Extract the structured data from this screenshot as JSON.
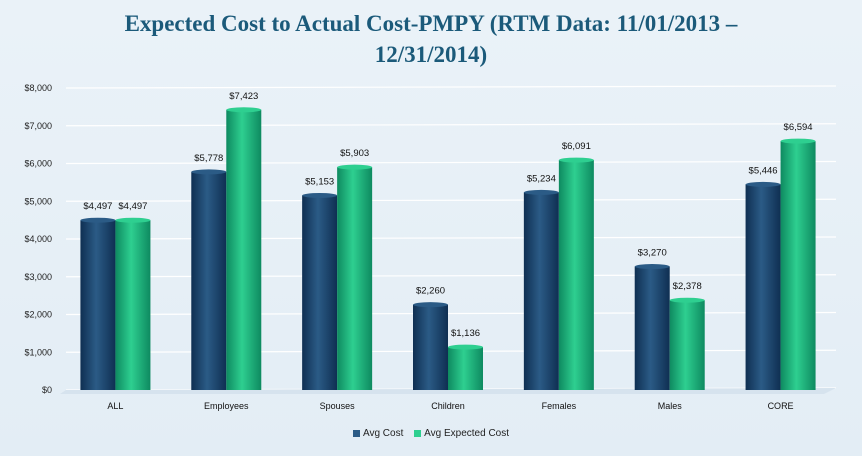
{
  "chart_data": {
    "type": "bar",
    "title_line1": "Expected Cost to Actual Cost-PMPY (RTM Data: 11/01/2013 –",
    "title_line2": "12/31/2014)",
    "categories": [
      "ALL",
      "Employees",
      "Spouses",
      "Children",
      "Females",
      "Males",
      "CORE"
    ],
    "series": [
      {
        "name": "Avg Cost",
        "values": [
          4497,
          5778,
          5153,
          2260,
          5234,
          3270,
          5446
        ],
        "labels": [
          "$4,497",
          "$5,778",
          "$5,153",
          "$2,260",
          "$5,234",
          "$3,270",
          "$5,446"
        ],
        "color": "#2b5b86",
        "color_dark": "#0f2f52"
      },
      {
        "name": "Avg Expected Cost",
        "values": [
          4497,
          7423,
          5903,
          1136,
          6091,
          2378,
          6594
        ],
        "labels": [
          "$4,497",
          "$7,423",
          "$5,903",
          "$1,136",
          "$6,091",
          "$2,378",
          "$6,594"
        ],
        "color": "#2ecf90",
        "color_dark": "#0e8a60"
      }
    ],
    "y_ticks": [
      "$0",
      "$1,000",
      "$2,000",
      "$3,000",
      "$4,000",
      "$5,000",
      "$6,000",
      "$7,000",
      "$8,000"
    ],
    "ylim": [
      0,
      8000
    ],
    "grid": true,
    "legend_position": "bottom"
  }
}
